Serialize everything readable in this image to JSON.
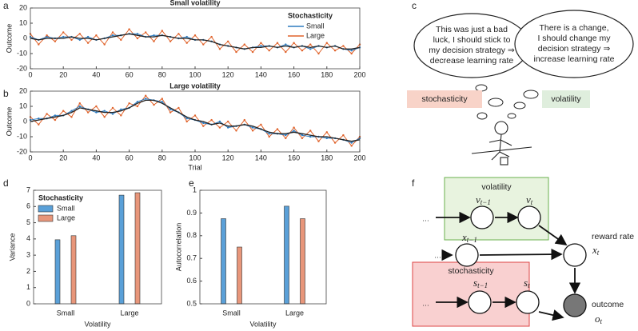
{
  "chart_data": [
    {
      "type": "line",
      "title": "Small volatility",
      "ylabel": "Outcome",
      "legend_title": "Stochasticity",
      "legend": "upper right",
      "x": [
        0,
        5,
        10,
        15,
        20,
        25,
        30,
        35,
        40,
        45,
        50,
        55,
        60,
        65,
        70,
        75,
        80,
        85,
        90,
        95,
        100,
        105,
        110,
        115,
        120,
        125,
        130,
        135,
        140,
        145,
        150,
        155,
        160,
        165,
        170,
        175,
        180,
        185,
        190,
        195,
        200
      ],
      "series": [
        {
          "color": "#e0632b",
          "name": "Large",
          "values": [
            3,
            -4,
            2,
            -2,
            4,
            -1,
            3,
            -3,
            2,
            -4,
            4,
            -1,
            6,
            0,
            4,
            -2,
            5,
            -2,
            3,
            -3,
            2,
            -4,
            1,
            -7,
            -2,
            -9,
            -4,
            -9,
            -3,
            -8,
            -3,
            -9,
            -3,
            -8,
            -4,
            -10,
            -3,
            -8,
            -5,
            -10,
            -4
          ]
        },
        {
          "color": "#2e7bbf",
          "name": "Small",
          "values": [
            1,
            -1,
            1,
            0,
            1,
            1,
            -1,
            1,
            -1,
            0,
            2,
            2,
            3,
            3,
            1,
            2,
            2,
            1,
            0,
            1,
            -1,
            -1,
            -2,
            -4,
            -5,
            -6,
            -7,
            -6,
            -5,
            -5,
            -6,
            -4,
            -6,
            -5,
            -7,
            -5,
            -6,
            -5,
            -7,
            -8,
            -6
          ]
        },
        {
          "color": "#222222",
          "values": [
            0,
            -1,
            0,
            0,
            0,
            1,
            0,
            0,
            -1,
            0,
            1,
            2,
            3,
            2,
            1,
            1,
            2,
            1,
            0,
            0,
            -1,
            -1,
            -2,
            -4,
            -5,
            -6,
            -7,
            -6,
            -6,
            -5,
            -6,
            -5,
            -6,
            -5,
            -6,
            -5,
            -6,
            -5,
            -7,
            -7,
            -6
          ]
        }
      ],
      "xlim": [
        0,
        200
      ],
      "xticks": [
        0,
        20,
        40,
        60,
        80,
        100,
        120,
        140,
        160,
        180,
        200
      ],
      "ylim": [
        -20,
        20
      ],
      "yticks": [
        -20,
        -10,
        0,
        10,
        20
      ]
    },
    {
      "type": "line",
      "title": "Large volatility",
      "ylabel": "Outcome",
      "xlabel": "Trial",
      "x": [
        0,
        5,
        10,
        15,
        20,
        25,
        30,
        35,
        40,
        45,
        50,
        55,
        60,
        65,
        70,
        75,
        80,
        85,
        90,
        95,
        100,
        105,
        110,
        115,
        120,
        125,
        130,
        135,
        140,
        145,
        150,
        155,
        160,
        165,
        170,
        175,
        180,
        185,
        190,
        195,
        200
      ],
      "series": [
        {
          "color": "#e0632b",
          "values": [
            3,
            -2,
            5,
            1,
            7,
            3,
            12,
            6,
            10,
            3,
            9,
            4,
            12,
            10,
            17,
            11,
            15,
            6,
            9,
            0,
            4,
            -3,
            1,
            -4,
            0,
            -6,
            1,
            -6,
            -2,
            -10,
            -5,
            -11,
            -4,
            -11,
            -6,
            -13,
            -7,
            -14,
            -9,
            -16,
            -10
          ]
        },
        {
          "color": "#2e7bbf",
          "values": [
            1,
            2,
            2,
            4,
            4,
            7,
            10,
            8,
            6,
            7,
            5,
            8,
            9,
            13,
            15,
            14,
            13,
            8,
            6,
            2,
            1,
            -1,
            -2,
            0,
            -4,
            -3,
            -2,
            -4,
            -5,
            -8,
            -8,
            -9,
            -6,
            -9,
            -10,
            -10,
            -11,
            -11,
            -12,
            -14,
            -11
          ]
        },
        {
          "color": "#222222",
          "values": [
            0,
            1,
            2,
            3,
            4,
            6,
            9,
            8,
            7,
            6,
            6,
            7,
            9,
            12,
            14,
            14,
            12,
            9,
            6,
            3,
            1,
            0,
            -2,
            -1,
            -3,
            -3,
            -2,
            -3,
            -5,
            -7,
            -8,
            -8,
            -7,
            -8,
            -9,
            -10,
            -10,
            -11,
            -12,
            -13,
            -12
          ]
        }
      ],
      "xlim": [
        0,
        200
      ],
      "xticks": [
        0,
        20,
        40,
        60,
        80,
        100,
        120,
        140,
        160,
        180,
        200
      ],
      "ylim": [
        -20,
        20
      ],
      "yticks": [
        -20,
        -10,
        0,
        10,
        20
      ]
    },
    {
      "type": "bar",
      "ylabel": "Variance",
      "xlabel": "Volatility",
      "legend_title": "Stochasticity",
      "legend": "upper left",
      "categories": [
        "Small",
        "Large"
      ],
      "series": [
        {
          "name": "Small",
          "color": "#5aa0d8",
          "values": [
            3.95,
            6.7
          ]
        },
        {
          "name": "Large",
          "color": "#e8967a",
          "values": [
            4.2,
            6.85
          ]
        }
      ],
      "ylim": [
        0,
        7
      ],
      "yticks": [
        0,
        1,
        2,
        3,
        4,
        5,
        6,
        7
      ]
    },
    {
      "type": "bar",
      "ylabel": "Autocorrelation",
      "xlabel": "Volatility",
      "categories": [
        "Small",
        "Large"
      ],
      "series": [
        {
          "color": "#5aa0d8",
          "values": [
            0.875,
            0.93
          ]
        },
        {
          "color": "#e8967a",
          "values": [
            0.75,
            0.875
          ]
        }
      ],
      "ylim": [
        0.5,
        1
      ],
      "yticks": [
        0.5,
        0.6,
        0.7,
        0.8,
        0.9,
        1
      ]
    }
  ],
  "panel_labels": [
    "a",
    "b",
    "c",
    "d",
    "e",
    "f"
  ],
  "diagram_c": {
    "left_thought": [
      "This was just a bad",
      "luck, I should stick to",
      "my decision strategy ⇒",
      "decrease learning rate"
    ],
    "right_thought": [
      "There is a change,",
      "I should change my",
      "decision strategy ⇒",
      "increase learning rate"
    ],
    "left_label": "stochasticity",
    "right_label": "volatility"
  },
  "diagram_f": {
    "volatility_box": "volatility",
    "stochasticity_box": "stochasticity",
    "ellipsis": "…",
    "nodes": [
      {
        "main": "v",
        "sub": "t−1"
      },
      {
        "main": "v",
        "sub": "t"
      },
      {
        "main": "x",
        "sub": "t−1"
      },
      {
        "main": "x",
        "sub": "t"
      },
      {
        "main": "s",
        "sub": "t−1"
      },
      {
        "main": "s",
        "sub": "t"
      },
      {
        "main": "o",
        "sub": "t"
      }
    ],
    "reward_label": "reward rate",
    "outcome_label": "outcome"
  }
}
